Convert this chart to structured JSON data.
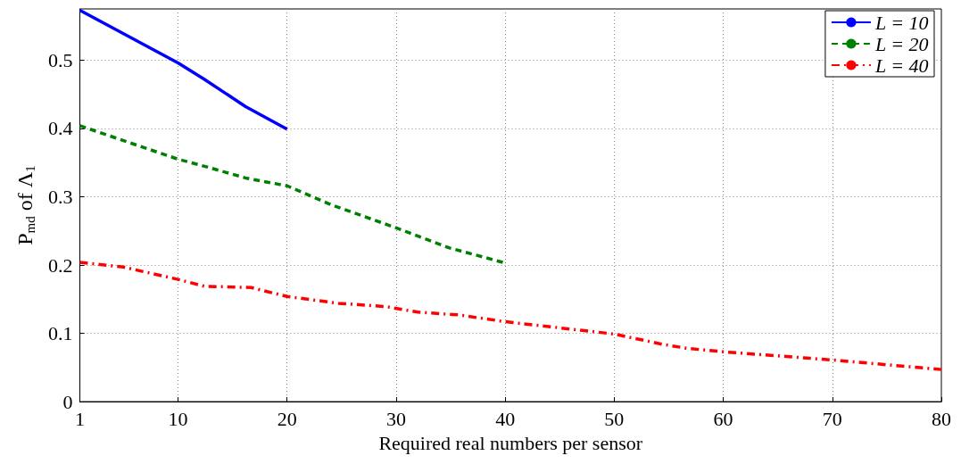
{
  "chart_data": {
    "type": "line",
    "xlabel": "Required real numbers per sensor",
    "ylabel": "P$_{md}$ of Λ$_{1}$",
    "xlim": [
      1,
      80
    ],
    "xticks": [
      1,
      10,
      20,
      30,
      40,
      50,
      60,
      70,
      80
    ],
    "ylim": [
      0,
      0.575
    ],
    "yticks": [
      0,
      0.1,
      0.2,
      0.3,
      0.4,
      0.5
    ],
    "grid": true,
    "legend": "top right",
    "marker": "none",
    "series": [
      {
        "name": "L = 10",
        "color": "#0000ff",
        "line_style": "solid",
        "x": [
          1,
          10,
          12.4,
          16.2,
          20
        ],
        "values": [
          0.573,
          0.496,
          0.472,
          0.432,
          0.399
        ]
      },
      {
        "name": "L = 20",
        "color": "#008000",
        "line_style": "dashed",
        "x": [
          1,
          10,
          12.8,
          16.3,
          20,
          24.1,
          29.9,
          34.9,
          40
        ],
        "values": [
          0.404,
          0.355,
          0.343,
          0.327,
          0.316,
          0.288,
          0.255,
          0.225,
          0.203
        ]
      },
      {
        "name": "L = 40",
        "color": "#ff0000",
        "line_style": "dashdot",
        "x": [
          1,
          5,
          10,
          12.4,
          16.7,
          20,
          24.7,
          29.1,
          32,
          35.7,
          40,
          50,
          54.4,
          56.7,
          60,
          70,
          80
        ],
        "values": [
          0.204,
          0.197,
          0.179,
          0.169,
          0.167,
          0.154,
          0.144,
          0.139,
          0.131,
          0.127,
          0.117,
          0.099,
          0.084,
          0.078,
          0.073,
          0.061,
          0.047
        ]
      }
    ]
  }
}
